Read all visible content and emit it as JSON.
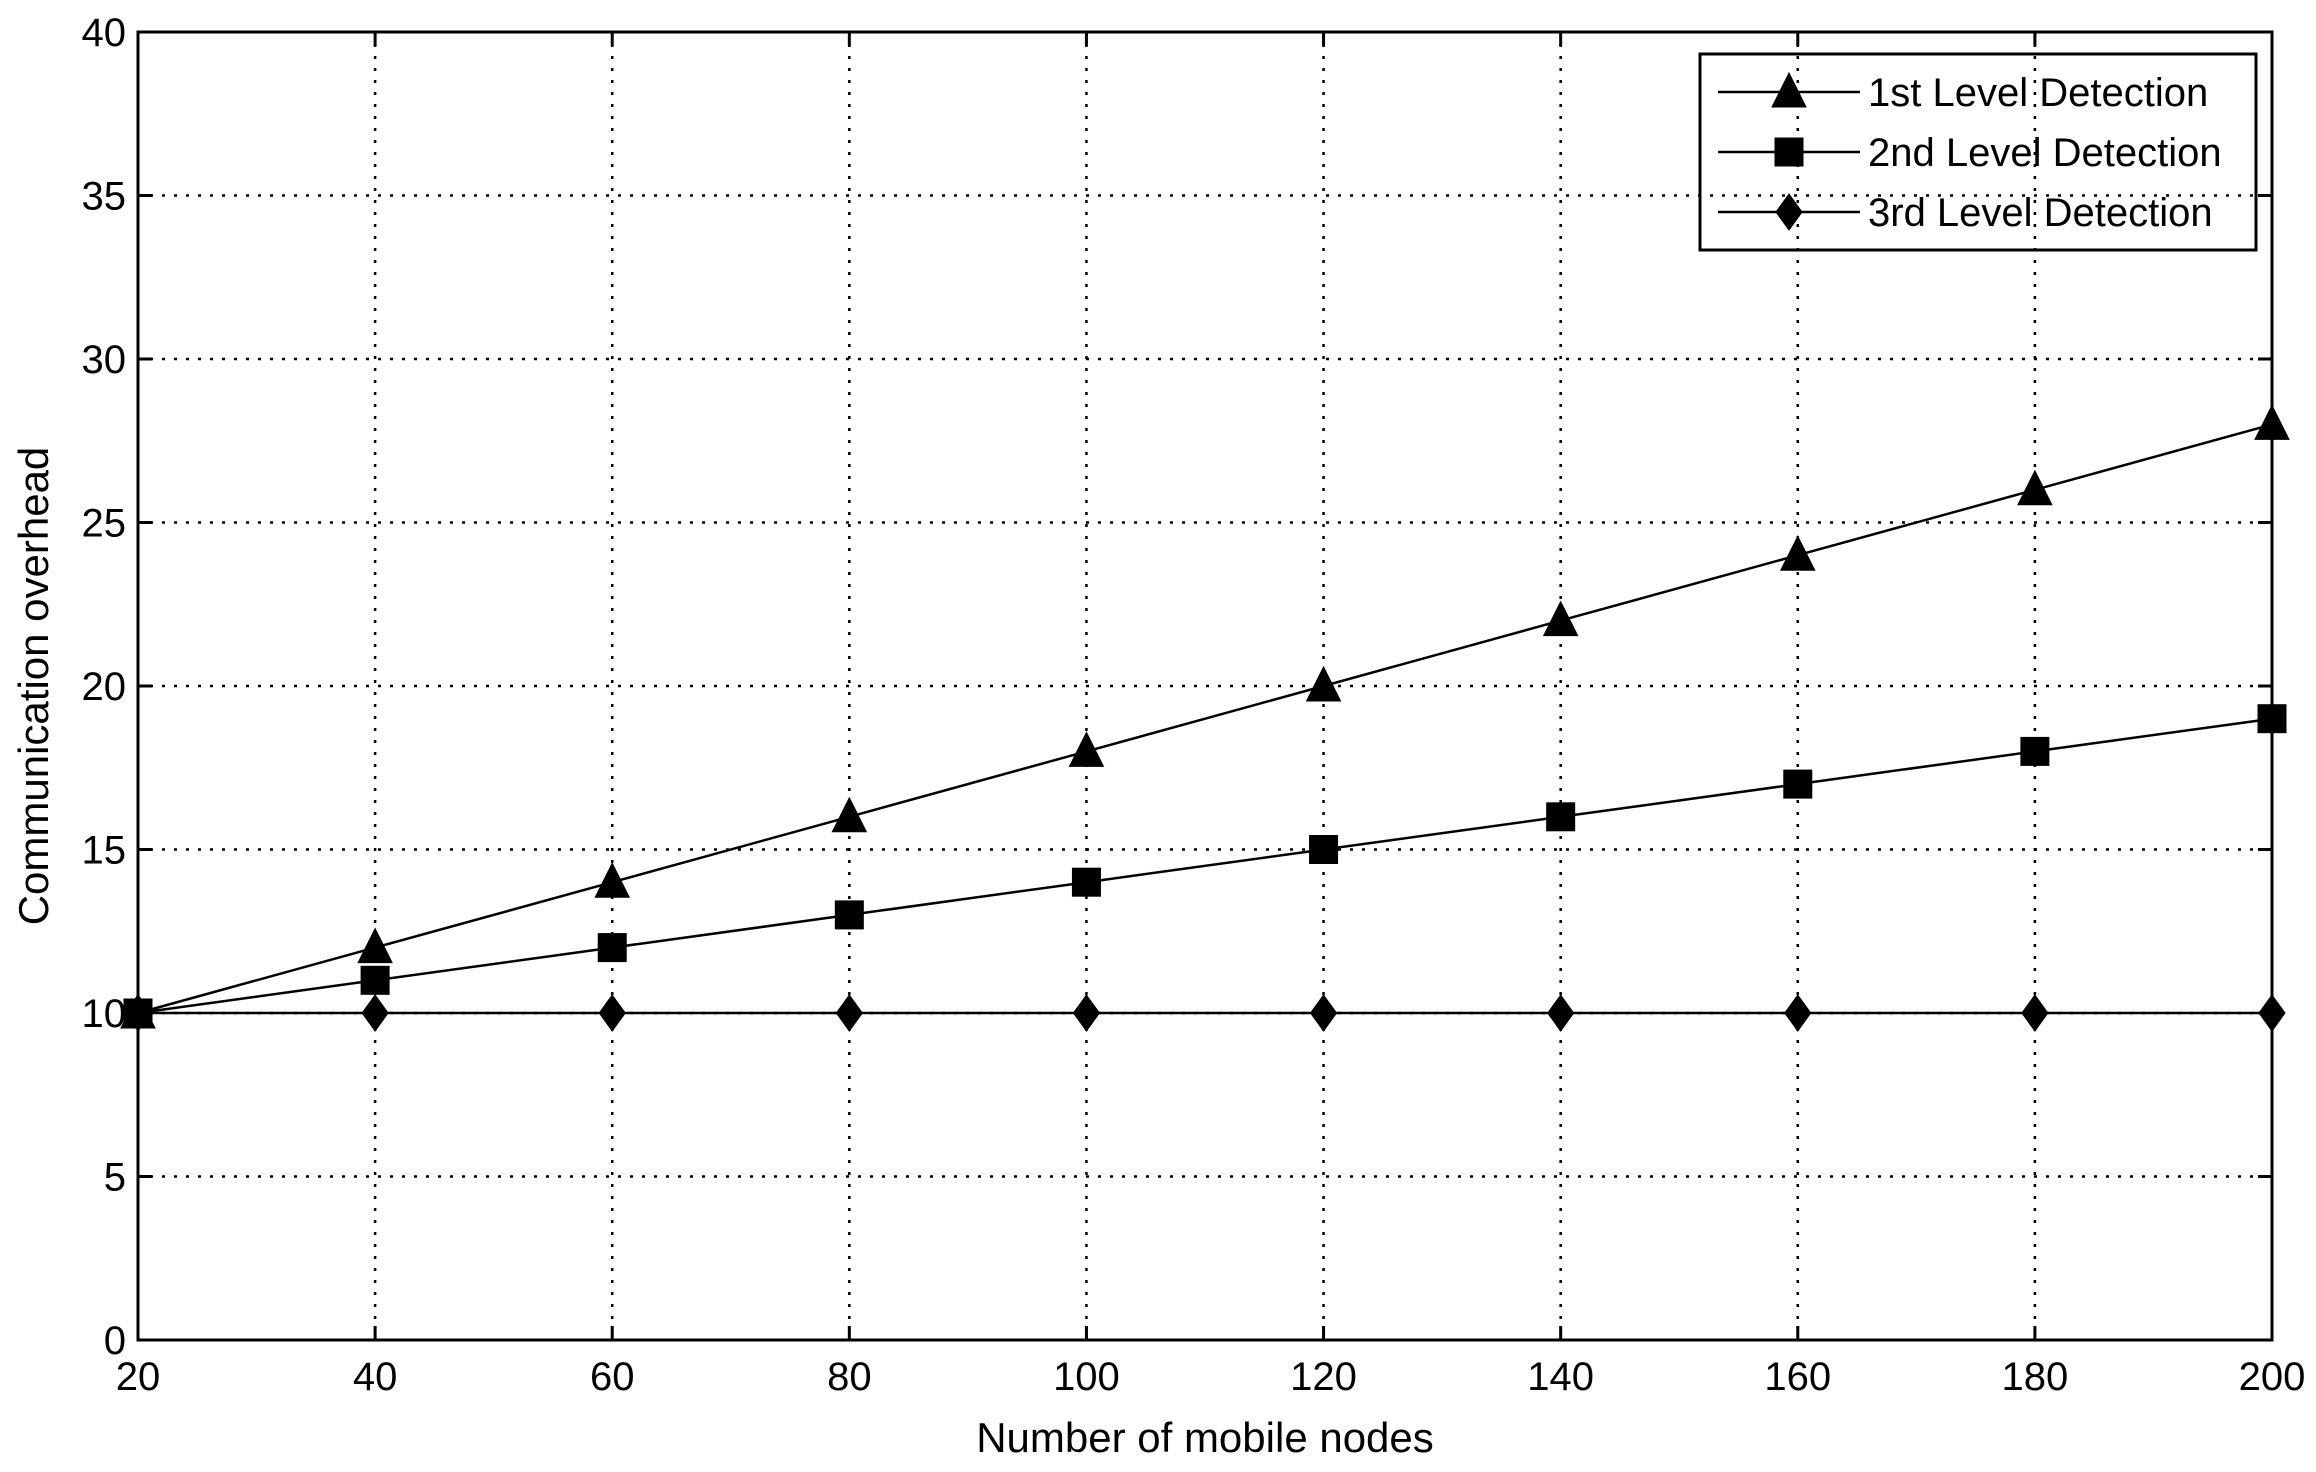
{
  "chart_data": {
    "type": "line",
    "title": "",
    "xlabel": "Number of mobile nodes",
    "ylabel": "Communication overhead",
    "xlim": [
      20,
      200
    ],
    "ylim": [
      0,
      40
    ],
    "x_ticks": [
      20,
      40,
      60,
      80,
      100,
      120,
      140,
      160,
      180,
      200
    ],
    "y_ticks": [
      0,
      5,
      10,
      15,
      20,
      25,
      30,
      35,
      40
    ],
    "grid": true,
    "legend_position": "top-right",
    "x": [
      20,
      40,
      60,
      80,
      100,
      120,
      140,
      160,
      180,
      200
    ],
    "series": [
      {
        "name": "1st Level Detection",
        "marker": "triangle",
        "values": [
          10,
          12,
          14,
          16,
          18,
          20,
          22,
          24,
          26,
          28
        ]
      },
      {
        "name": "2nd Level Detection",
        "marker": "square",
        "values": [
          10,
          11,
          12,
          13,
          14,
          15,
          16,
          17,
          18,
          19
        ]
      },
      {
        "name": "3rd Level Detection",
        "marker": "diamond",
        "values": [
          10,
          10,
          10,
          10,
          10,
          10,
          10,
          10,
          10,
          10
        ]
      }
    ]
  }
}
